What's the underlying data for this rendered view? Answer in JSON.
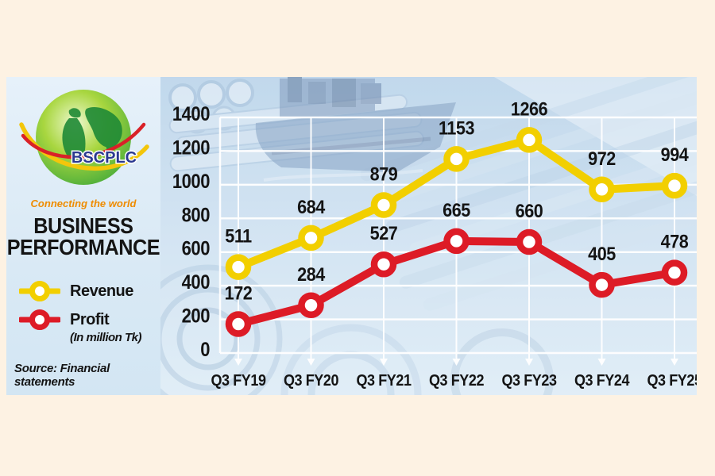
{
  "brand": {
    "logo_text": "BSCPLC",
    "tagline": "Connecting the world",
    "title_line1": "BUSINESS",
    "title_line2": "PERFORMANCE",
    "source": "Source: Financial statements"
  },
  "legend": {
    "items": [
      {
        "label": "Revenue",
        "color": "#f2cf00"
      },
      {
        "label": "Profit",
        "color": "#dd1b26"
      }
    ],
    "unit_note": "(In million Tk)"
  },
  "chart_data": {
    "type": "line",
    "title": "Business performance",
    "unit": "In million Tk",
    "categories": [
      "Q3 FY19",
      "Q3 FY20",
      "Q3 FY21",
      "Q3 FY22",
      "Q3 FY23",
      "Q3 FY24",
      "Q3 FY25"
    ],
    "series": [
      {
        "name": "Revenue",
        "color": "#f2cf00",
        "values": [
          511,
          684,
          879,
          1153,
          1266,
          972,
          994
        ]
      },
      {
        "name": "Profit",
        "color": "#dd1b26",
        "values": [
          172,
          284,
          527,
          665,
          660,
          405,
          478
        ]
      }
    ],
    "ylim": [
      0,
      1400
    ],
    "ytick_step": 200,
    "grid": true,
    "gridline_color": "#ffffff",
    "label_color": "#141414",
    "legend_position": "left-panel"
  }
}
